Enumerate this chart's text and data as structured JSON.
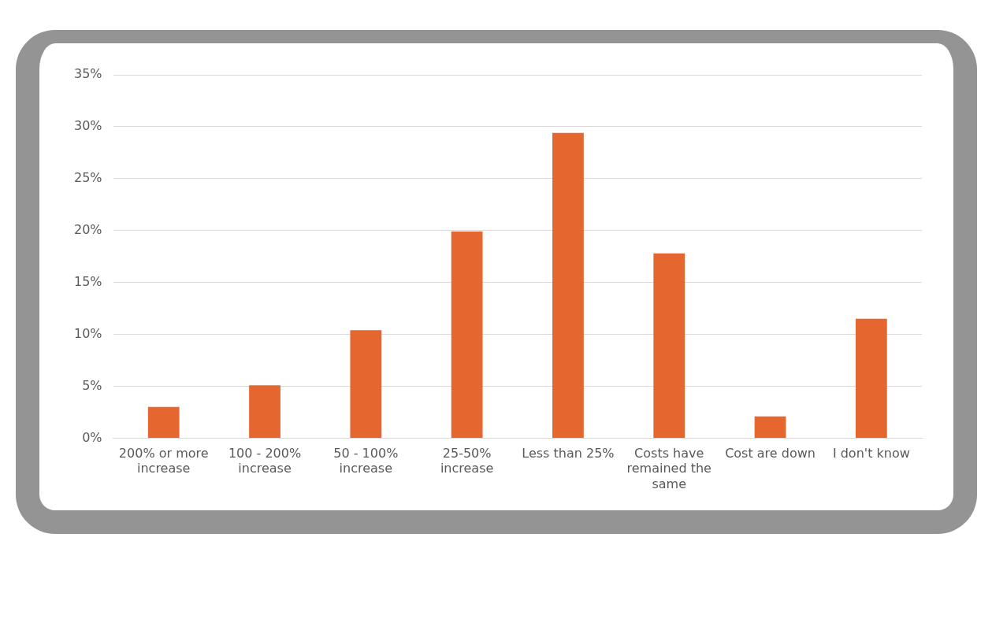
{
  "chart_data": {
    "type": "bar",
    "categories": [
      "200% or more increase",
      "100 - 200% increase",
      "50 - 100% increase",
      "25-50% increase",
      "Less than 25%",
      "Costs have remained the same",
      "Cost are down",
      "I don't know"
    ],
    "values": [
      3,
      5.1,
      10.4,
      19.9,
      29.4,
      17.8,
      2.1,
      11.5
    ],
    "color": "#e5662e",
    "ylim": [
      0,
      35
    ],
    "yticks": [
      {
        "value": 0,
        "label": "0%"
      },
      {
        "value": 5,
        "label": "5%"
      },
      {
        "value": 10,
        "label": "10%"
      },
      {
        "value": 15,
        "label": "15%"
      },
      {
        "value": 20,
        "label": "20%"
      },
      {
        "value": 25,
        "label": "25%"
      },
      {
        "value": 30,
        "label": "30%"
      },
      {
        "value": 35,
        "label": "35%"
      }
    ],
    "grid": "y",
    "legend": false
  }
}
